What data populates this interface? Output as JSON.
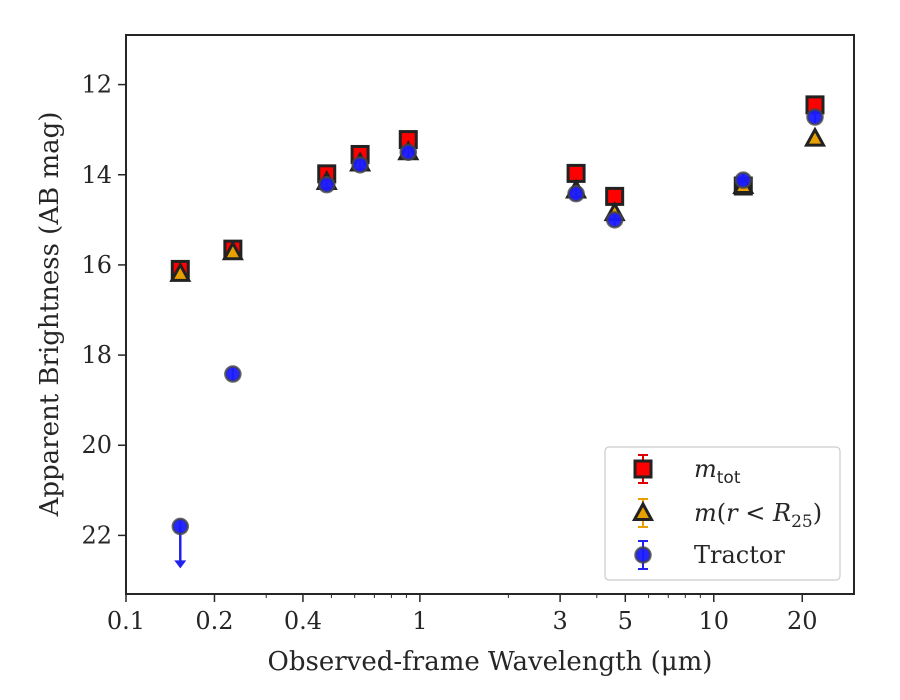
{
  "chart_data": {
    "type": "scatter",
    "xlabel": "Observed-frame Wavelength (μm)",
    "ylabel": "Apparent Brightness (AB mag)",
    "xscale": "log",
    "xlim": [
      0.1,
      30
    ],
    "ylim": [
      23.3,
      10.9
    ],
    "y_inverted": true,
    "xticks": [
      {
        "value": 0.1,
        "label": "0.1"
      },
      {
        "value": 0.2,
        "label": "0.2"
      },
      {
        "value": 0.4,
        "label": "0.4"
      },
      {
        "value": 1,
        "label": "1"
      },
      {
        "value": 3,
        "label": "3"
      },
      {
        "value": 5,
        "label": "5"
      },
      {
        "value": 10,
        "label": "10"
      },
      {
        "value": 20,
        "label": "20"
      }
    ],
    "yticks": [
      {
        "value": 12,
        "label": "12"
      },
      {
        "value": 14,
        "label": "14"
      },
      {
        "value": 16,
        "label": "16"
      },
      {
        "value": 18,
        "label": "18"
      },
      {
        "value": 20,
        "label": "20"
      },
      {
        "value": 22,
        "label": "22"
      }
    ],
    "legend_position": "lower-right",
    "grid": false,
    "series": [
      {
        "name": "m_tot",
        "legend_label": {
          "main": "m",
          "sub": "tot"
        },
        "marker": "square",
        "color": "#ff0000",
        "edge": "#222222",
        "error_color": "#dd0000",
        "points": [
          {
            "x": 0.153,
            "y": 16.1
          },
          {
            "x": 0.231,
            "y": 15.65
          },
          {
            "x": 0.482,
            "y": 13.98
          },
          {
            "x": 0.626,
            "y": 13.55
          },
          {
            "x": 0.913,
            "y": 13.22
          },
          {
            "x": 3.4,
            "y": 13.97
          },
          {
            "x": 4.6,
            "y": 14.48
          },
          {
            "x": 12.6,
            "y": 14.25
          },
          {
            "x": 22.1,
            "y": 12.45
          }
        ]
      },
      {
        "name": "m(r<R25)",
        "legend_label": {
          "main": "m",
          "rest": "(",
          "ital2": "r",
          "op": " < ",
          "ital3": "R",
          "sub": "25",
          "close": ")"
        },
        "marker": "triangle",
        "color": "#e8a000",
        "edge": "#222222",
        "error_color": "#e8a000",
        "points": [
          {
            "x": 0.153,
            "y": 16.2
          },
          {
            "x": 0.231,
            "y": 15.72
          },
          {
            "x": 0.482,
            "y": 14.16
          },
          {
            "x": 0.626,
            "y": 13.75
          },
          {
            "x": 0.913,
            "y": 13.5
          },
          {
            "x": 3.4,
            "y": 14.35
          },
          {
            "x": 4.6,
            "y": 14.85
          },
          {
            "x": 12.6,
            "y": 14.25
          },
          {
            "x": 22.1,
            "y": 13.2
          }
        ]
      },
      {
        "name": "Tractor",
        "legend_label": {
          "main": "Tractor"
        },
        "marker": "circle",
        "color": "#1a1aff",
        "edge": "#444444",
        "error_color": "#2222ee",
        "points": [
          {
            "x": 0.153,
            "y": 21.8,
            "upper_limit": true
          },
          {
            "x": 0.231,
            "y": 18.42
          },
          {
            "x": 0.482,
            "y": 14.22
          },
          {
            "x": 0.626,
            "y": 13.78
          },
          {
            "x": 0.913,
            "y": 13.5
          },
          {
            "x": 3.4,
            "y": 14.42
          },
          {
            "x": 4.6,
            "y": 15.0
          },
          {
            "x": 12.6,
            "y": 14.12
          },
          {
            "x": 22.1,
            "y": 12.72
          }
        ]
      }
    ]
  }
}
